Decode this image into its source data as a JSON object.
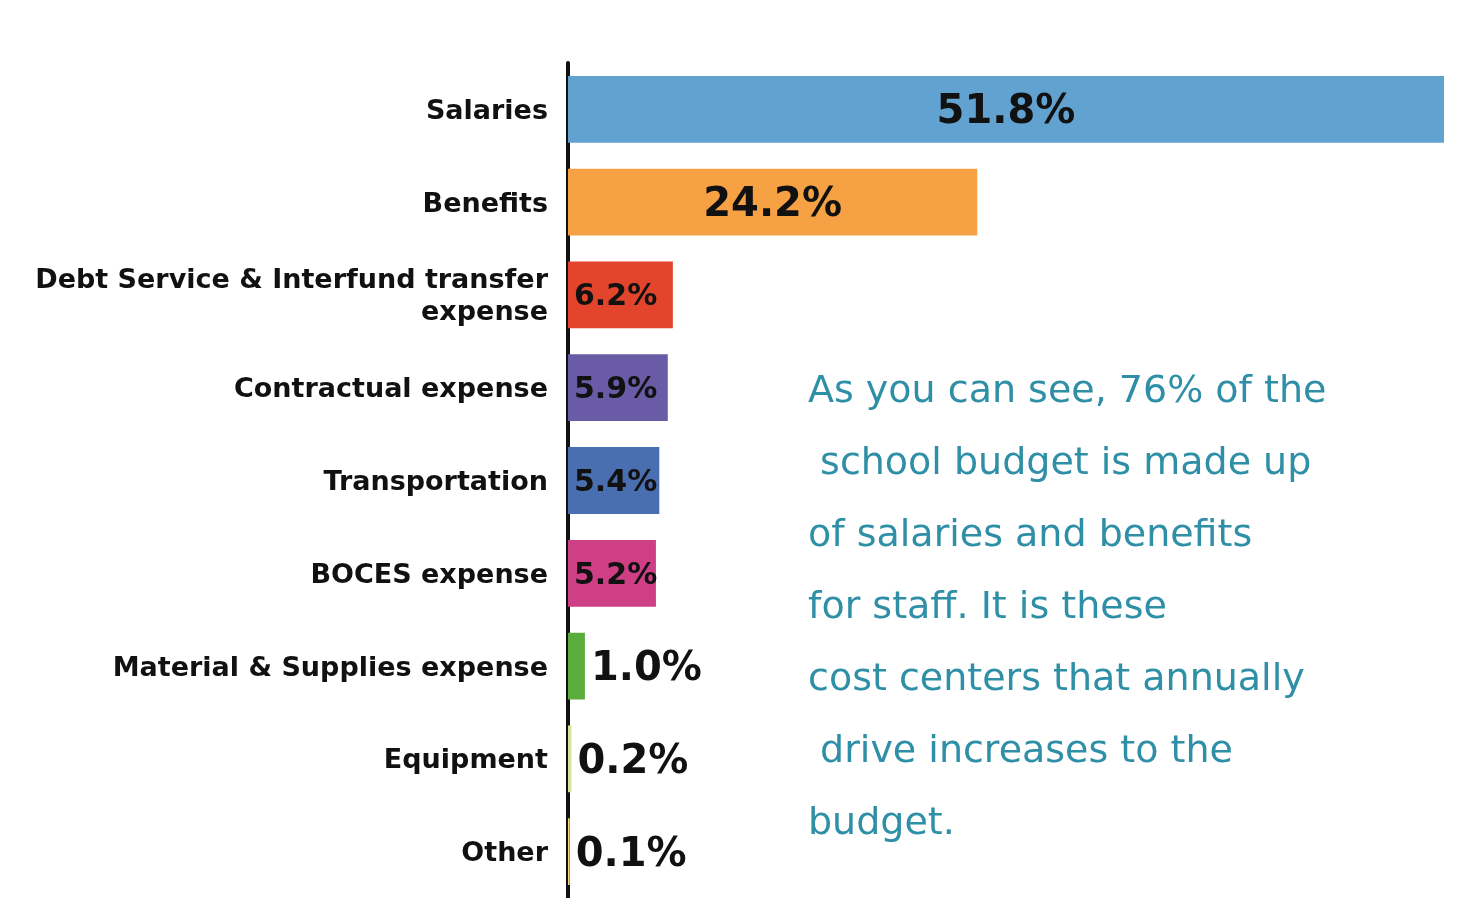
{
  "chart_data": {
    "type": "bar",
    "orientation": "horizontal",
    "categories": [
      "Salaries",
      "Benefits",
      "Debt Service & Interfund transfer expense",
      "Contractual expense",
      "Transportation",
      "BOCES expense",
      "Material & Supplies expense",
      "Equipment",
      "Other"
    ],
    "values": [
      51.8,
      24.2,
      6.2,
      5.9,
      5.4,
      5.2,
      1.0,
      0.2,
      0.1
    ],
    "value_labels": [
      "51.8%",
      "24.2%",
      "6.2%",
      "5.9%",
      "5.4%",
      "5.2%",
      "1.0%",
      "0.2%",
      "0.1%"
    ],
    "colors": [
      "#62a2d0",
      "#f6a244",
      "#e2452c",
      "#6a5ba6",
      "#4a6fb0",
      "#cf3f86",
      "#5aad3c",
      "#d6e39a",
      "#f9d57c"
    ],
    "annotations": [
      "As you can see, 76% of the school budget is made up of salaries and benefits for staff. It is these cost centers that annually drive increases to the budget."
    ]
  }
}
